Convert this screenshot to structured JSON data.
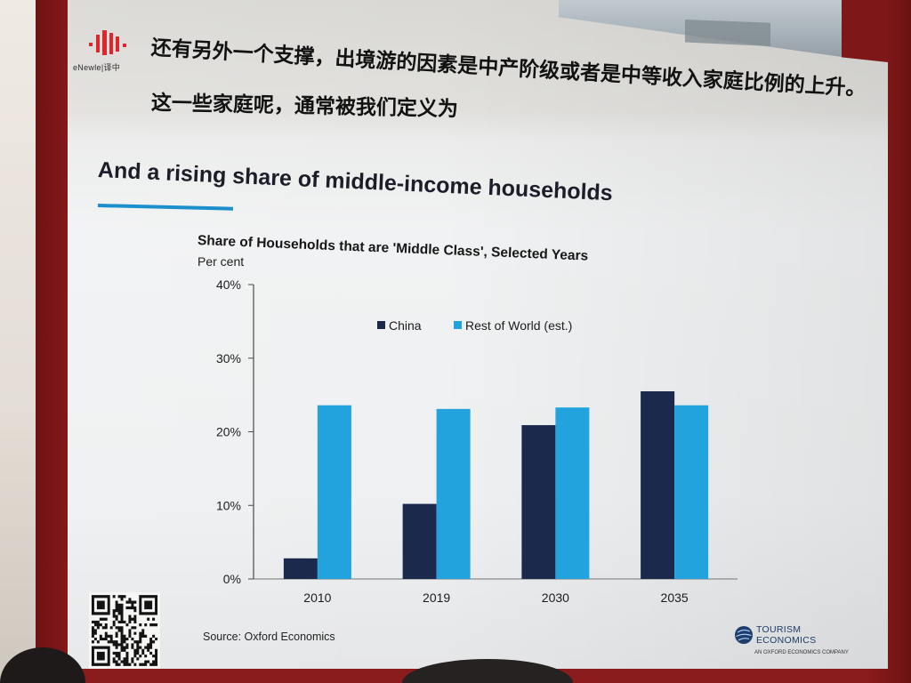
{
  "logo": {
    "text": "eNewle|译中",
    "icon": "red-bars-logo-icon",
    "color": "#e2252c"
  },
  "subtitles": [
    "还有另外一个支撑，出境游的因素是中产阶级或者是中等收入家庭比例的上升。",
    "这一些家庭呢，通常被我们定义为"
  ],
  "slide": {
    "title": "And a rising share of middle-income households",
    "accent_color": "#1b8fcb",
    "source": "Source: Oxford Economics"
  },
  "qr_code": {
    "icon": "qr-code-icon"
  },
  "footer_logo": {
    "icon": "globe-icon",
    "line1": "TOURISM",
    "line2": "ECONOMICS",
    "tagline": "AN OXFORD ECONOMICS COMPANY"
  },
  "colors": {
    "frame": "#8a1b1c"
  },
  "chart_data": {
    "type": "bar",
    "title": "Share of Households that are 'Middle Class', Selected Years",
    "xlabel": "",
    "ylabel": "Per cent",
    "categories": [
      "2010",
      "2019",
      "2030",
      "2035"
    ],
    "series": [
      {
        "name": "China",
        "color": "#1b2a4c",
        "values": [
          2.8,
          10.2,
          20.9,
          25.5
        ]
      },
      {
        "name": "Rest of World (est.)",
        "color": "#22a3dd",
        "values": [
          23.6,
          23.1,
          23.3,
          23.6
        ]
      }
    ],
    "ylim": [
      0,
      40
    ],
    "yticks": [
      0,
      10,
      20,
      30,
      40
    ],
    "ytick_labels": [
      "0%",
      "10%",
      "20%",
      "30%",
      "40%"
    ],
    "grid": false,
    "legend_position": "top-center"
  }
}
